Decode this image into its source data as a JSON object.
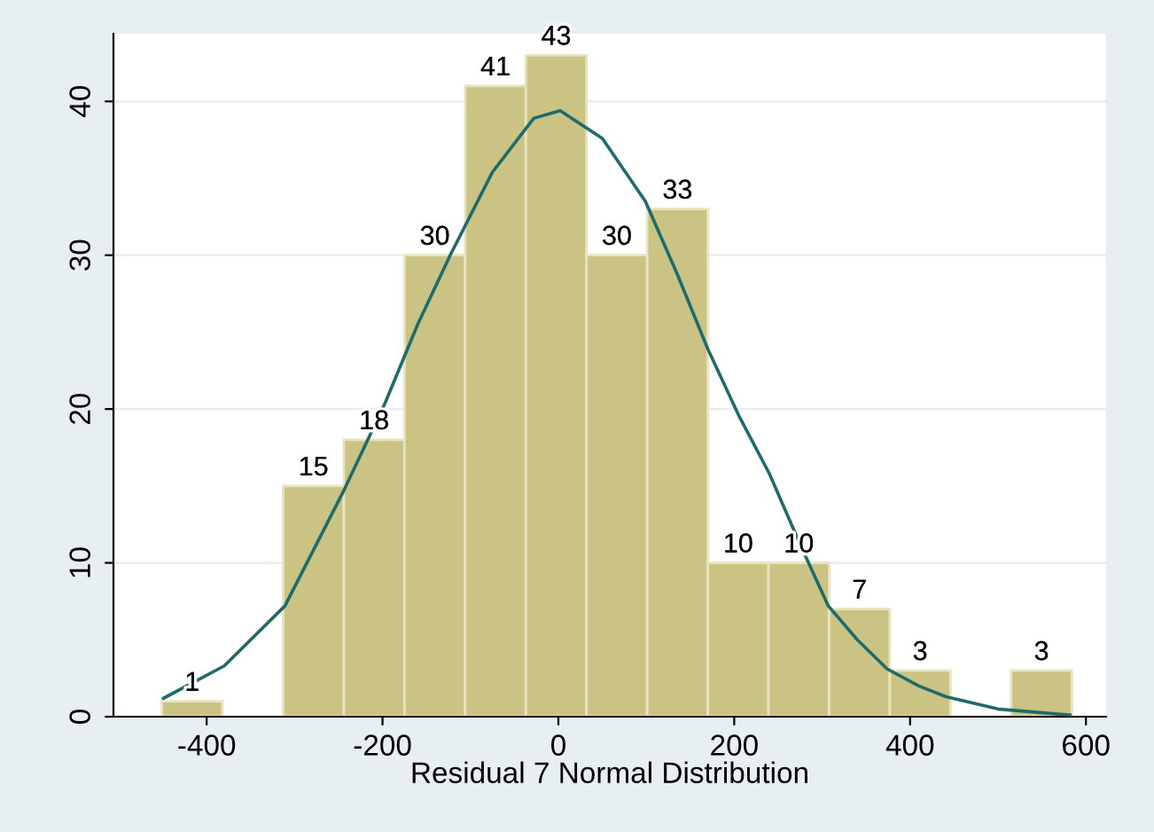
{
  "chart_data": {
    "type": "histogram",
    "xlabel": "Residual 7 Normal Distribution",
    "bins": [
      -451,
      -382,
      -313,
      -244,
      -175,
      -106,
      -37,
      32,
      101,
      170,
      239,
      308,
      377,
      446,
      515,
      584
    ],
    "values": [
      1,
      0,
      15,
      18,
      30,
      41,
      43,
      30,
      33,
      10,
      10,
      7,
      3,
      0,
      3
    ],
    "color": "#cbc383",
    "value_labels": [
      "1",
      null,
      "15",
      "18",
      "30",
      "41",
      "43",
      "30",
      "33",
      "10",
      "10",
      "7",
      "3",
      null,
      "3"
    ],
    "series": [
      {
        "type": "line",
        "color": "#1e6b6b",
        "x": [
          -449,
          -380,
          -311,
          -244,
          -197,
          -160,
          -123,
          -75,
          -28,
          2,
          50,
          99,
          135,
          170,
          205,
          240,
          275,
          307,
          340,
          374,
          410,
          441,
          500,
          582
        ],
        "values": [
          1.2,
          3.3,
          7.2,
          14.7,
          20.4,
          25.5,
          30.0,
          35.4,
          38.9,
          39.4,
          37.6,
          33.5,
          28.8,
          23.9,
          19.6,
          15.8,
          11.2,
          7.2,
          5.0,
          3.1,
          2.0,
          1.3,
          0.5,
          0.1
        ]
      }
    ],
    "xlim": [
      -506,
      623
    ],
    "ylim": [
      0,
      44.4
    ],
    "xticks": [
      -400,
      -200,
      0,
      200,
      400,
      600
    ],
    "yticks": [
      0,
      10,
      20,
      30,
      40
    ],
    "grid": "y",
    "legend": false
  }
}
